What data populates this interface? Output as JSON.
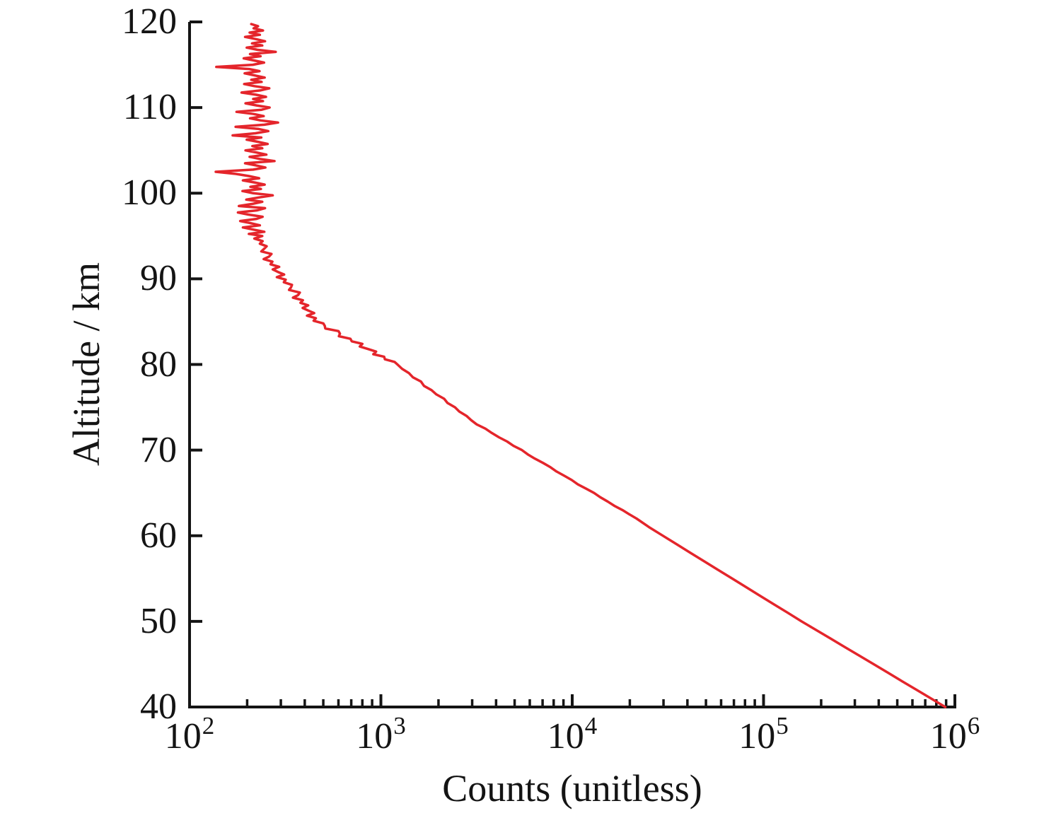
{
  "chart_data": {
    "type": "line",
    "title": "",
    "xlabel": "Counts (unitless)",
    "ylabel": "Altitude / km",
    "x_scale": "log",
    "y_scale": "linear",
    "xlim": [
      100,
      1000000
    ],
    "ylim": [
      40,
      120
    ],
    "grid": false,
    "legend": false,
    "axis_color": "#141414",
    "x_tick_values": [
      100,
      1000,
      10000,
      100000,
      1000000
    ],
    "x_tick_labels": [
      {
        "base": "10",
        "exp": "2"
      },
      {
        "base": "10",
        "exp": "3"
      },
      {
        "base": "10",
        "exp": "4"
      },
      {
        "base": "10",
        "exp": "5"
      },
      {
        "base": "10",
        "exp": "6"
      }
    ],
    "x_minor_multiples": [
      2,
      3,
      4,
      5,
      6,
      7,
      8,
      9
    ],
    "y_tick_values": [
      40,
      50,
      60,
      70,
      80,
      90,
      100,
      110,
      120
    ],
    "y_tick_labels": [
      "40",
      "50",
      "60",
      "70",
      "80",
      "90",
      "100",
      "110",
      "120"
    ],
    "series": [
      {
        "name": "counts-altitude-profile",
        "color": "#e4252b",
        "x_is": "counts",
        "y_is": "altitude_km",
        "points": [
          [
            40,
            891000
          ],
          [
            41,
            750000
          ],
          [
            42,
            631000
          ],
          [
            43,
            531000
          ],
          [
            44,
            447000
          ],
          [
            45,
            376000
          ],
          [
            46,
            316000
          ],
          [
            47,
            266000
          ],
          [
            48,
            224000
          ],
          [
            49,
            188000
          ],
          [
            50,
            158000
          ],
          [
            51,
            134000
          ],
          [
            52,
            113000
          ],
          [
            53,
            95600
          ],
          [
            54,
            81000
          ],
          [
            55,
            68500
          ],
          [
            56,
            58000
          ],
          [
            57,
            49100
          ],
          [
            58,
            41500
          ],
          [
            59,
            35200
          ],
          [
            60,
            29800
          ],
          [
            61,
            25200
          ],
          [
            62,
            21700
          ],
          [
            62.5,
            19900
          ],
          [
            63,
            18300
          ],
          [
            63.5,
            16600
          ],
          [
            64,
            15300
          ],
          [
            64.5,
            14000
          ],
          [
            65,
            13000
          ],
          [
            65.5,
            11800
          ],
          [
            66,
            10700
          ],
          [
            66.5,
            9950
          ],
          [
            67,
            9100
          ],
          [
            67.5,
            8280
          ],
          [
            68,
            7700
          ],
          [
            68.5,
            7040
          ],
          [
            69,
            6380
          ],
          [
            69.5,
            5860
          ],
          [
            70,
            5460
          ],
          [
            70.5,
            4930
          ],
          [
            71,
            4570
          ],
          [
            71.5,
            4140
          ],
          [
            72,
            3800
          ],
          [
            72.5,
            3520
          ],
          [
            73,
            3170
          ],
          [
            73.5,
            2960
          ],
          [
            74,
            2800
          ],
          [
            74.5,
            2570
          ],
          [
            75,
            2440
          ],
          [
            75.5,
            2230
          ],
          [
            76,
            2140
          ],
          [
            76.5,
            1950
          ],
          [
            77,
            1840
          ],
          [
            77.5,
            1680
          ],
          [
            78,
            1620
          ],
          [
            78.5,
            1470
          ],
          [
            79,
            1400
          ],
          [
            79.5,
            1290
          ],
          [
            80,
            1220
          ],
          [
            80.3,
            1180
          ],
          [
            80.6,
            1050
          ],
          [
            80.9,
            1040
          ],
          [
            81.2,
            913
          ],
          [
            81.5,
            944
          ],
          [
            81.8,
            857
          ],
          [
            82.1,
            775
          ],
          [
            82.4,
            800
          ],
          [
            82.7,
            705
          ],
          [
            83,
            693
          ],
          [
            83.3,
            603
          ],
          [
            83.6,
            611
          ],
          [
            83.9,
            600
          ],
          [
            84.2,
            512
          ],
          [
            84.5,
            509
          ],
          [
            84.8,
            500
          ],
          [
            85.1,
            445
          ],
          [
            85.4,
            457
          ],
          [
            85.7,
            411
          ],
          [
            86,
            448
          ],
          [
            86.3,
            417
          ],
          [
            86.6,
            390
          ],
          [
            86.9,
            417
          ],
          [
            87.2,
            380
          ],
          [
            87.5,
            391
          ],
          [
            87.8,
            347
          ],
          [
            88.1,
            369
          ],
          [
            88.4,
            377
          ],
          [
            88.7,
            331
          ],
          [
            89,
            339
          ],
          [
            89.3,
            343
          ],
          [
            89.6,
            311
          ],
          [
            89.9,
            318
          ],
          [
            90.2,
            286
          ],
          [
            90.5,
            312
          ],
          [
            90.8,
            290
          ],
          [
            91.1,
            272
          ],
          [
            91.4,
            294
          ],
          [
            91.7,
            265
          ],
          [
            92,
            271
          ],
          [
            92.3,
            244
          ],
          [
            92.6,
            260
          ],
          [
            92.9,
            268
          ],
          [
            93.2,
            237
          ],
          [
            93.5,
            245
          ],
          [
            93.8,
            253
          ],
          [
            94.1,
            233
          ],
          [
            94.4,
            241
          ],
          [
            94.7,
            218
          ],
          [
            95,
            240
          ],
          [
            95.25,
            204
          ],
          [
            95.5,
            246
          ],
          [
            95.75,
            215
          ],
          [
            96,
            190
          ],
          [
            96.25,
            233
          ],
          [
            96.5,
            208
          ],
          [
            96.75,
            184
          ],
          [
            97,
            224
          ],
          [
            97.25,
            241
          ],
          [
            97.5,
            203
          ],
          [
            97.75,
            179
          ],
          [
            98,
            226
          ],
          [
            98.25,
            248
          ],
          [
            98.5,
            181
          ],
          [
            98.75,
            213
          ],
          [
            99,
            240
          ],
          [
            99.25,
            198
          ],
          [
            99.5,
            230
          ],
          [
            99.75,
            272
          ],
          [
            100,
            215
          ],
          [
            100.25,
            189
          ],
          [
            100.5,
            236
          ],
          [
            100.75,
            208
          ],
          [
            101,
            247
          ],
          [
            101.25,
            219
          ],
          [
            101.5,
            190
          ],
          [
            101.75,
            231
          ],
          [
            102,
            204
          ],
          [
            102.25,
            175
          ],
          [
            102.5,
            137
          ],
          [
            102.75,
            215
          ],
          [
            103,
            249
          ],
          [
            103.25,
            222
          ],
          [
            103.5,
            195
          ],
          [
            103.75,
            278
          ],
          [
            104,
            233
          ],
          [
            104.25,
            206
          ],
          [
            104.5,
            252
          ],
          [
            104.75,
            224
          ],
          [
            105,
            196
          ],
          [
            105.25,
            240
          ],
          [
            105.5,
            213
          ],
          [
            105.75,
            256
          ],
          [
            106,
            228
          ],
          [
            106.25,
            199
          ],
          [
            106.5,
            237
          ],
          [
            106.75,
            168
          ],
          [
            107,
            221
          ],
          [
            107.25,
            258
          ],
          [
            107.5,
            230
          ],
          [
            107.75,
            174
          ],
          [
            108,
            246
          ],
          [
            108.25,
            290
          ],
          [
            108.5,
            235
          ],
          [
            108.75,
            207
          ],
          [
            109,
            244
          ],
          [
            109.25,
            216
          ],
          [
            109.5,
            176
          ],
          [
            109.75,
            238
          ],
          [
            110,
            262
          ],
          [
            110.25,
            224
          ],
          [
            110.5,
            196
          ],
          [
            110.75,
            242
          ],
          [
            111,
            215
          ],
          [
            111.25,
            251
          ],
          [
            111.5,
            223
          ],
          [
            111.75,
            187
          ],
          [
            112,
            234
          ],
          [
            112.25,
            261
          ],
          [
            112.5,
            218
          ],
          [
            112.75,
            193
          ],
          [
            113,
            238
          ],
          [
            113.25,
            210
          ],
          [
            113.5,
            247
          ],
          [
            113.75,
            219
          ],
          [
            114,
            194
          ],
          [
            114.25,
            232
          ],
          [
            114.5,
            205
          ],
          [
            114.75,
            138
          ],
          [
            115,
            214
          ],
          [
            115.25,
            245
          ],
          [
            115.5,
            217
          ],
          [
            115.75,
            192
          ],
          [
            116,
            235
          ],
          [
            116.25,
            207
          ],
          [
            116.5,
            282
          ],
          [
            116.75,
            226
          ],
          [
            117,
            199
          ],
          [
            117.25,
            240
          ],
          [
            117.5,
            212
          ],
          [
            117.75,
            248
          ],
          [
            118,
            221
          ],
          [
            118.25,
            195
          ],
          [
            118.5,
            233
          ],
          [
            118.75,
            206
          ],
          [
            119,
            242
          ],
          [
            119.25,
            216
          ],
          [
            119.5,
            228
          ],
          [
            119.75,
            210
          ]
        ]
      }
    ]
  }
}
